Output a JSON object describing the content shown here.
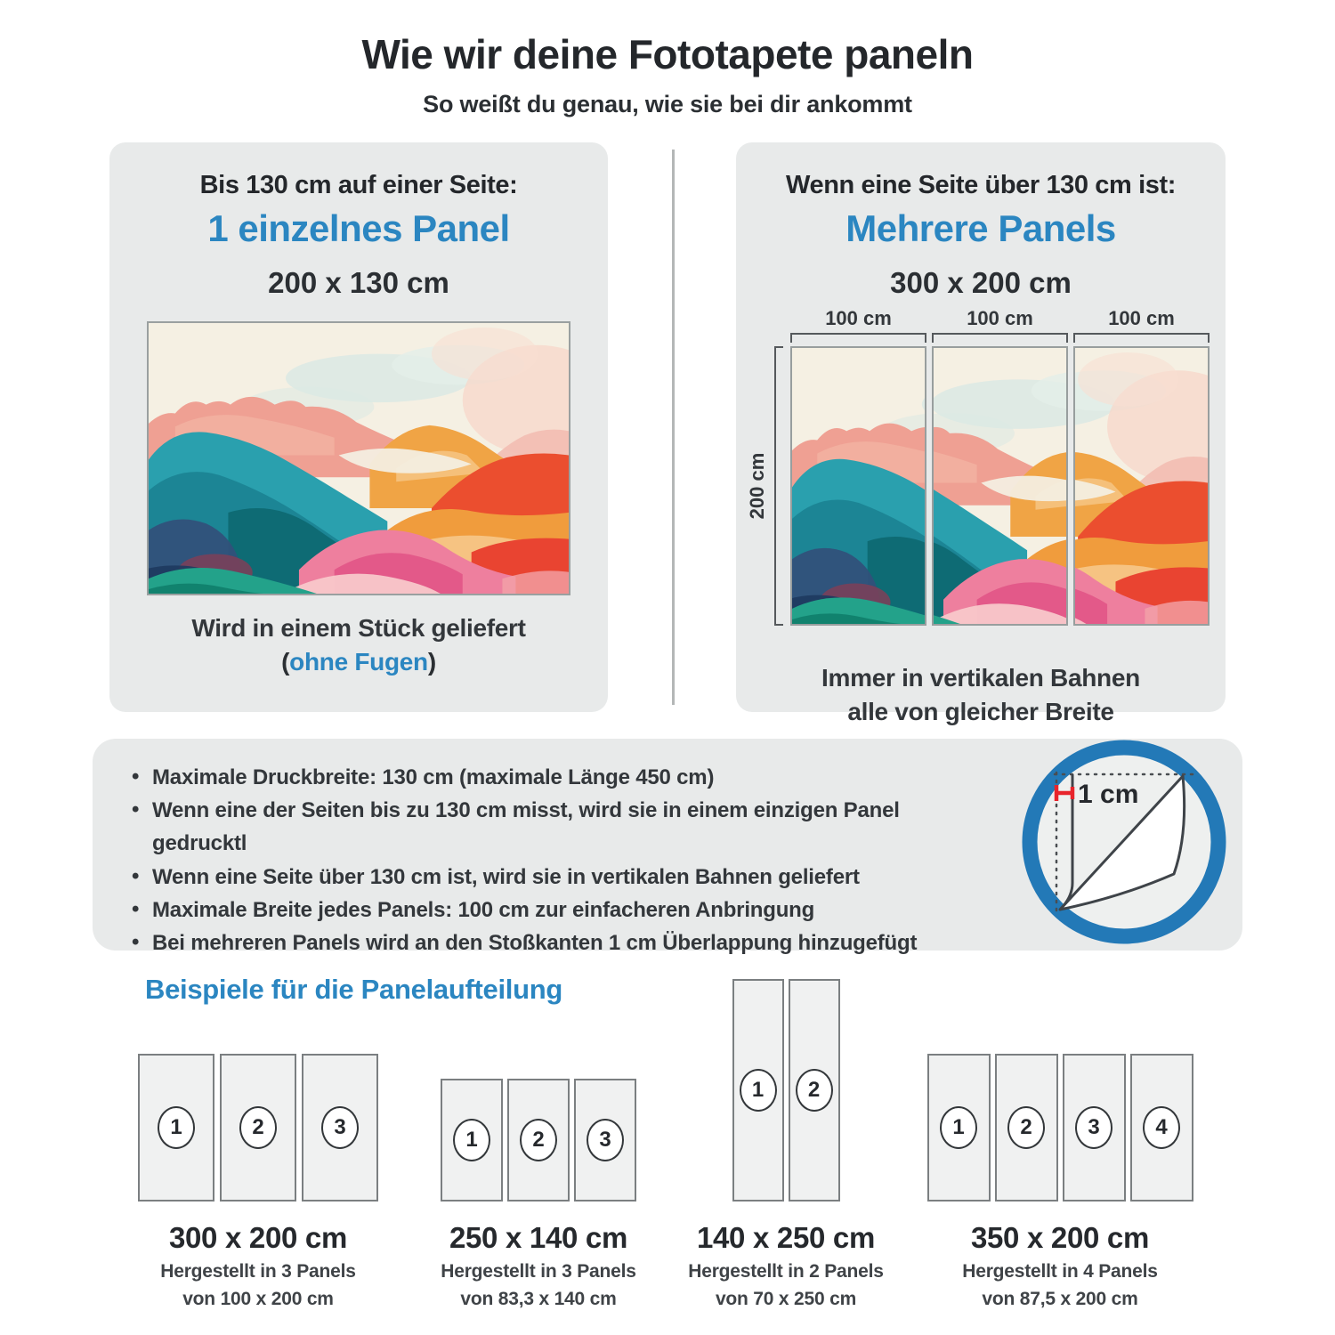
{
  "header": {
    "title": "Wie wir deine Fototapete paneln",
    "subtitle": "So weißt du genau, wie sie bei dir ankommt"
  },
  "single_card": {
    "heading": "Bis 130 cm auf einer Seite:",
    "subheading": "1 einzelnes Panel",
    "size": "200 x 130 cm",
    "artwork": "abstract-watercolor-mountain-landscape",
    "delivery_line": "Wird in einem Stück geliefert",
    "paren_open": "(",
    "delivery_highlight": "ohne Fugen",
    "paren_close": ")"
  },
  "multi_card": {
    "heading": "Wenn eine Seite über 130 cm ist:",
    "subheading": "Mehrere Panels",
    "size": "300 x 200 cm",
    "panel_width_labels": [
      "100 cm",
      "100 cm",
      "100 cm"
    ],
    "height_label": "200 cm",
    "caption_line1": "Immer in vertikalen Bahnen",
    "caption_line2": "alle von gleicher Breite"
  },
  "info_box": {
    "bullets": [
      "Maximale Druckbreite: 130 cm (maximale Länge 450 cm)",
      "Wenn eine der Seiten bis zu 130 cm misst, wird sie in einem einzigen Panel gedrucktl",
      "Wenn eine Seite über 130 cm ist, wird sie in vertikalen Bahnen geliefert",
      "Maximale Breite jedes Panels: 100 cm zur einfacheren Anbringung",
      "Bei mehreren Panels wird an den Stoßkanten 1 cm Überlappung hinzugefügt"
    ],
    "overlap_icon_label": "1 cm"
  },
  "examples": {
    "heading": "Beispiele für die Panelaufteilung",
    "items": [
      {
        "size": "300 x 200 cm",
        "made_in": "Hergestellt in 3 Panels",
        "of": "von 100 x 200 cm",
        "panel_numbers": [
          "1",
          "2",
          "3"
        ]
      },
      {
        "size": "250 x 140 cm",
        "made_in": "Hergestellt in 3 Panels",
        "of": "von 83,3 x 140 cm",
        "panel_numbers": [
          "1",
          "2",
          "3"
        ]
      },
      {
        "size": "140 x 250 cm",
        "made_in": "Hergestellt in 2 Panels",
        "of": "von 70 x 250 cm",
        "panel_numbers": [
          "1",
          "2"
        ]
      },
      {
        "size": "350 x 200 cm",
        "made_in": "Hergestellt in 4 Panels",
        "of": "von 87,5 x 200 cm",
        "panel_numbers": [
          "1",
          "2",
          "3",
          "4"
        ]
      }
    ]
  },
  "colors": {
    "accent_blue": "#2b86c1",
    "ring_blue": "#2379b7",
    "card_background": "#e8eaea",
    "text_dark": "#26292d",
    "overlap_red": "#e8242b"
  }
}
